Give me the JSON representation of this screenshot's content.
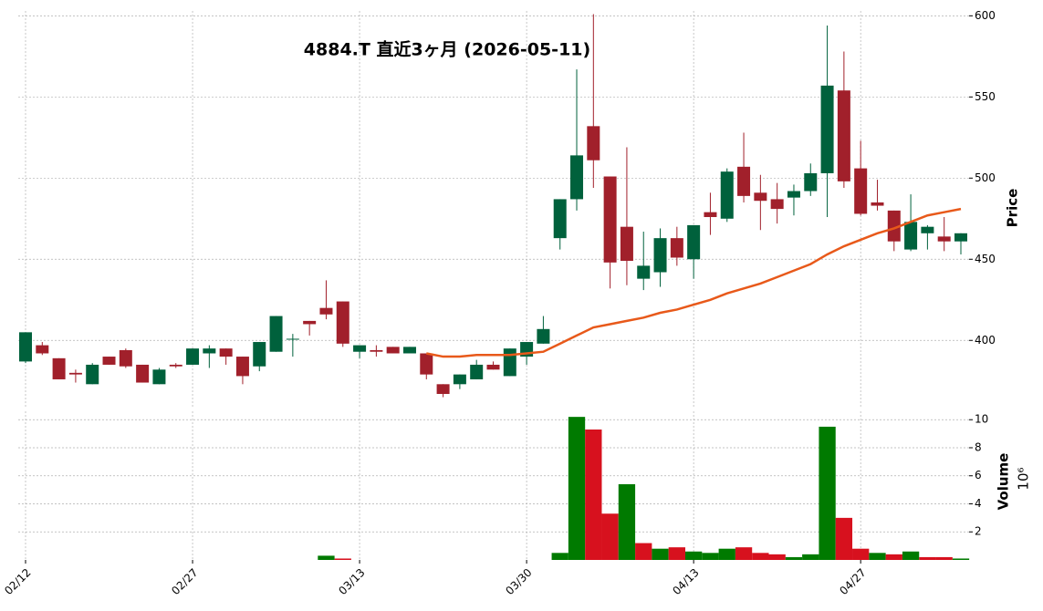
{
  "chart_data": {
    "type": "candlestick",
    "title": "4884.T 直近3ヶ月 (2026-05-11)",
    "ylabel": "Price",
    "categories": [
      "02/12",
      null,
      null,
      null,
      null,
      null,
      null,
      null,
      null,
      null,
      "02/27",
      null,
      null,
      null,
      null,
      null,
      null,
      null,
      null,
      null,
      "03/13",
      null,
      null,
      null,
      null,
      null,
      null,
      null,
      null,
      null,
      "03/30",
      null,
      null,
      null,
      null,
      null,
      null,
      null,
      null,
      null,
      "04/13",
      null,
      null,
      null,
      null,
      null,
      null,
      null,
      null,
      null,
      "04/27",
      null,
      null,
      null,
      null,
      null,
      null
    ],
    "open": [
      387,
      397,
      389,
      380,
      373,
      390,
      394,
      385,
      373,
      385,
      385,
      392,
      395,
      390,
      384,
      393,
      401,
      412,
      420,
      424,
      393,
      394,
      396,
      392,
      392,
      373,
      373,
      376,
      385,
      378,
      390,
      398,
      463,
      487,
      532,
      501,
      470,
      438,
      442,
      463,
      450,
      479,
      475,
      507,
      491,
      487,
      488,
      492,
      503,
      554,
      506,
      485,
      480,
      456,
      466,
      464,
      461
    ],
    "high": [
      405,
      399,
      389,
      382,
      386,
      390,
      395,
      385,
      383,
      386,
      395,
      397,
      395,
      390,
      399,
      415,
      404,
      412,
      437,
      424,
      397,
      397,
      396,
      396,
      392,
      373,
      379,
      388,
      387,
      395,
      399,
      415,
      487,
      567,
      601,
      501,
      519,
      467,
      469,
      470,
      471,
      491,
      506,
      528,
      502,
      497,
      496,
      509,
      594,
      578,
      523,
      499,
      480,
      490,
      471,
      476,
      466
    ],
    "low": [
      386,
      391,
      376,
      374,
      373,
      385,
      383,
      374,
      373,
      383,
      385,
      383,
      385,
      373,
      381,
      393,
      390,
      403,
      413,
      396,
      389,
      390,
      392,
      392,
      376,
      365,
      370,
      376,
      382,
      378,
      385,
      398,
      456,
      480,
      494,
      432,
      434,
      431,
      433,
      446,
      438,
      465,
      473,
      485,
      468,
      472,
      477,
      489,
      476,
      494,
      477,
      480,
      455,
      455,
      456,
      455,
      453
    ],
    "close": [
      405,
      392,
      376,
      379,
      385,
      385,
      384,
      374,
      382,
      384,
      395,
      395,
      390,
      378,
      399,
      415,
      401,
      410,
      416,
      398,
      397,
      393,
      392,
      396,
      379,
      367,
      379,
      385,
      382,
      395,
      399,
      407,
      487,
      514,
      511,
      448,
      449,
      446,
      463,
      451,
      471,
      476,
      504,
      489,
      486,
      481,
      492,
      503,
      557,
      498,
      478,
      483,
      461,
      473,
      470,
      461,
      466
    ],
    "up_color": "#00613c",
    "down_color": "#a1202b",
    "moving_average": {
      "color": "#e8591a",
      "values": [
        null,
        null,
        null,
        null,
        null,
        null,
        null,
        null,
        null,
        null,
        null,
        null,
        null,
        null,
        null,
        null,
        null,
        null,
        null,
        null,
        null,
        null,
        null,
        null,
        392,
        390,
        390,
        391,
        391,
        391,
        392,
        393,
        398,
        403,
        408,
        410,
        412,
        414,
        417,
        419,
        422,
        425,
        429,
        432,
        435,
        439,
        443,
        447,
        453,
        458,
        462,
        466,
        469,
        473,
        477,
        479,
        481
      ]
    },
    "ylim": [
      358,
      603
    ],
    "yticks": [
      400,
      450,
      500,
      550,
      600
    ],
    "grid": true,
    "volume": {
      "ylabel": "Volume",
      "offset_label": "10⁶",
      "ylim": [
        0,
        10.6
      ],
      "yticks": [
        2,
        4,
        6,
        8,
        10
      ],
      "up_color": "#007a00",
      "down_color": "#d7111e",
      "values": [
        0,
        0,
        0,
        0,
        0,
        0,
        0,
        0,
        0,
        0,
        0,
        0,
        0,
        0,
        0,
        0,
        0,
        0,
        0.3,
        0.1,
        0,
        0,
        0,
        0,
        0,
        0,
        0,
        0,
        0,
        0,
        0,
        0,
        0.5,
        10.2,
        9.3,
        3.3,
        5.4,
        1.2,
        0.8,
        0.9,
        0.6,
        0.5,
        0.8,
        0.9,
        0.5,
        0.4,
        0.2,
        0.4,
        9.5,
        3.0,
        0.8,
        0.5,
        0.4,
        0.6,
        0.2,
        0.2,
        0.1
      ]
    }
  }
}
